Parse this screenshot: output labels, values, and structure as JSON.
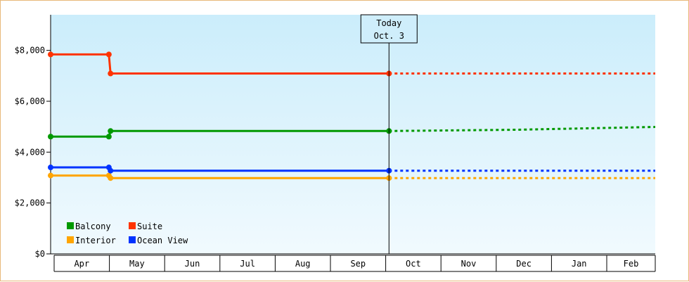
{
  "chart_data": {
    "type": "line",
    "title": "",
    "xlabel": "",
    "ylabel": "",
    "x_categories": [
      "Apr",
      "May",
      "Jun",
      "Jul",
      "Aug",
      "Sep",
      "Oct",
      "Nov",
      "Dec",
      "Jan",
      "Feb"
    ],
    "x_range": [
      3.0,
      13.9
    ],
    "y_range": [
      0,
      9400
    ],
    "y_ticks": [
      0,
      2000,
      4000,
      6000,
      8000
    ],
    "y_tick_labels": [
      "$0",
      "$2,000",
      "$4,000",
      "$6,000",
      "$8,000"
    ],
    "today": {
      "x": 9.1,
      "line1": "Today",
      "line2": "Oct. 3"
    },
    "legend": {
      "placement": "bottom-left"
    },
    "series": [
      {
        "name": "Balcony",
        "color": "#009900",
        "solid": [
          [
            3.0,
            4610
          ],
          [
            4.05,
            4610
          ],
          [
            4.08,
            4830
          ],
          [
            9.1,
            4830
          ]
        ],
        "markers": [
          [
            3.0,
            4610
          ],
          [
            4.05,
            4610
          ],
          [
            4.08,
            4830
          ],
          [
            9.1,
            4830
          ]
        ],
        "forecast": [
          [
            9.1,
            4830
          ],
          [
            11.4,
            4880
          ],
          [
            13.9,
            4990
          ]
        ]
      },
      {
        "name": "Suite",
        "color": "#ff3300",
        "solid": [
          [
            3.0,
            7840
          ],
          [
            4.05,
            7840
          ],
          [
            4.08,
            7090
          ],
          [
            9.1,
            7090
          ]
        ],
        "markers": [
          [
            3.0,
            7840
          ],
          [
            4.05,
            7840
          ],
          [
            4.08,
            7090
          ],
          [
            9.1,
            7090
          ]
        ],
        "forecast": [
          [
            9.1,
            7090
          ],
          [
            13.9,
            7090
          ]
        ]
      },
      {
        "name": "Interior",
        "color": "#ffa500",
        "solid": [
          [
            3.0,
            3080
          ],
          [
            4.05,
            3080
          ],
          [
            4.08,
            2980
          ],
          [
            9.1,
            2980
          ]
        ],
        "markers": [
          [
            3.0,
            3080
          ],
          [
            4.05,
            3080
          ],
          [
            4.08,
            2980
          ],
          [
            9.1,
            2980
          ]
        ],
        "forecast": [
          [
            9.1,
            2980
          ],
          [
            13.9,
            2980
          ]
        ]
      },
      {
        "name": "Ocean View",
        "color": "#0033ff",
        "solid": [
          [
            3.0,
            3400
          ],
          [
            4.05,
            3400
          ],
          [
            4.08,
            3270
          ],
          [
            9.1,
            3270
          ]
        ],
        "markers": [
          [
            3.0,
            3400
          ],
          [
            4.05,
            3400
          ],
          [
            4.08,
            3270
          ],
          [
            9.1,
            3270
          ]
        ],
        "forecast": [
          [
            9.1,
            3270
          ],
          [
            13.9,
            3270
          ]
        ]
      }
    ]
  }
}
